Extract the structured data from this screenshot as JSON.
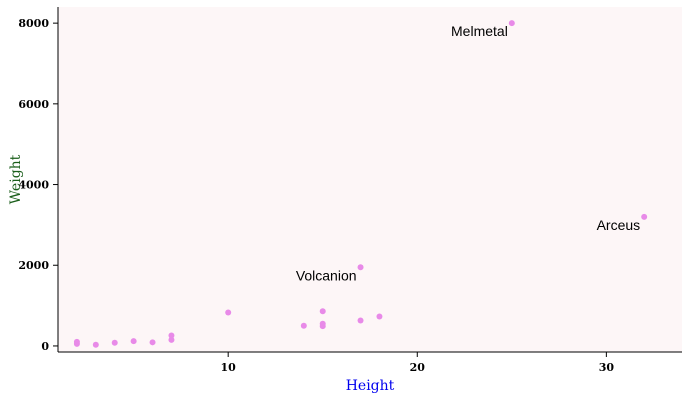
{
  "colors": {
    "plot_background": "#fdf6f7",
    "point": "#e88ae8",
    "xlabel": "#0000ee",
    "ylabel": "#1a5e1a",
    "axis": "#000000"
  },
  "chart_data": {
    "type": "scatter",
    "xlabel": "Height",
    "ylabel": "Weight",
    "xlim": [
      1,
      34
    ],
    "ylim": [
      -150,
      8400
    ],
    "xticks": [
      10,
      20,
      30
    ],
    "yticks": [
      0,
      2000,
      4000,
      6000,
      8000
    ],
    "grid": false,
    "points": [
      {
        "x": 2,
        "y": 50
      },
      {
        "x": 2,
        "y": 100
      },
      {
        "x": 3,
        "y": 30
      },
      {
        "x": 4,
        "y": 80
      },
      {
        "x": 5,
        "y": 120
      },
      {
        "x": 6,
        "y": 90
      },
      {
        "x": 7,
        "y": 150
      },
      {
        "x": 7,
        "y": 260
      },
      {
        "x": 10,
        "y": 830
      },
      {
        "x": 14,
        "y": 500
      },
      {
        "x": 15,
        "y": 490
      },
      {
        "x": 15,
        "y": 550
      },
      {
        "x": 15,
        "y": 860
      },
      {
        "x": 17,
        "y": 630
      },
      {
        "x": 18,
        "y": 730
      },
      {
        "x": 17,
        "y": 1950
      },
      {
        "x": 25,
        "y": 8000
      },
      {
        "x": 32,
        "y": 3200
      }
    ],
    "annotations": [
      {
        "text": "Melmetal",
        "x": 25,
        "y": 8000
      },
      {
        "text": "Volcanion",
        "x": 17,
        "y": 1950
      },
      {
        "text": "Arceus",
        "x": 32,
        "y": 3200
      }
    ]
  }
}
